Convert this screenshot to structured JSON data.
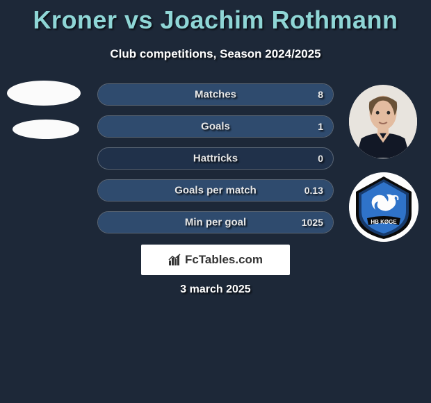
{
  "title": "Kroner vs Joachim Rothmann",
  "subtitle": "Club competitions, Season 2024/2025",
  "date": "3 march 2025",
  "brand": "FcTables.com",
  "colors": {
    "background": "#1d2838",
    "title": "#8fd6d6",
    "pill_border": "#5a6675",
    "pill_bg": "#20314a",
    "pill_fill": "#2f4b6e",
    "badge_primary": "#173a6b",
    "badge_secondary": "#2f73c9",
    "badge_black": "#0a0a0a"
  },
  "stats": [
    {
      "label": "Matches",
      "right_value": "8",
      "fill_pct": 100
    },
    {
      "label": "Goals",
      "right_value": "1",
      "fill_pct": 100
    },
    {
      "label": "Hattricks",
      "right_value": "0",
      "fill_pct": 0
    },
    {
      "label": "Goals per match",
      "right_value": "0.13",
      "fill_pct": 100
    },
    {
      "label": "Min per goal",
      "right_value": "1025",
      "fill_pct": 100
    }
  ]
}
